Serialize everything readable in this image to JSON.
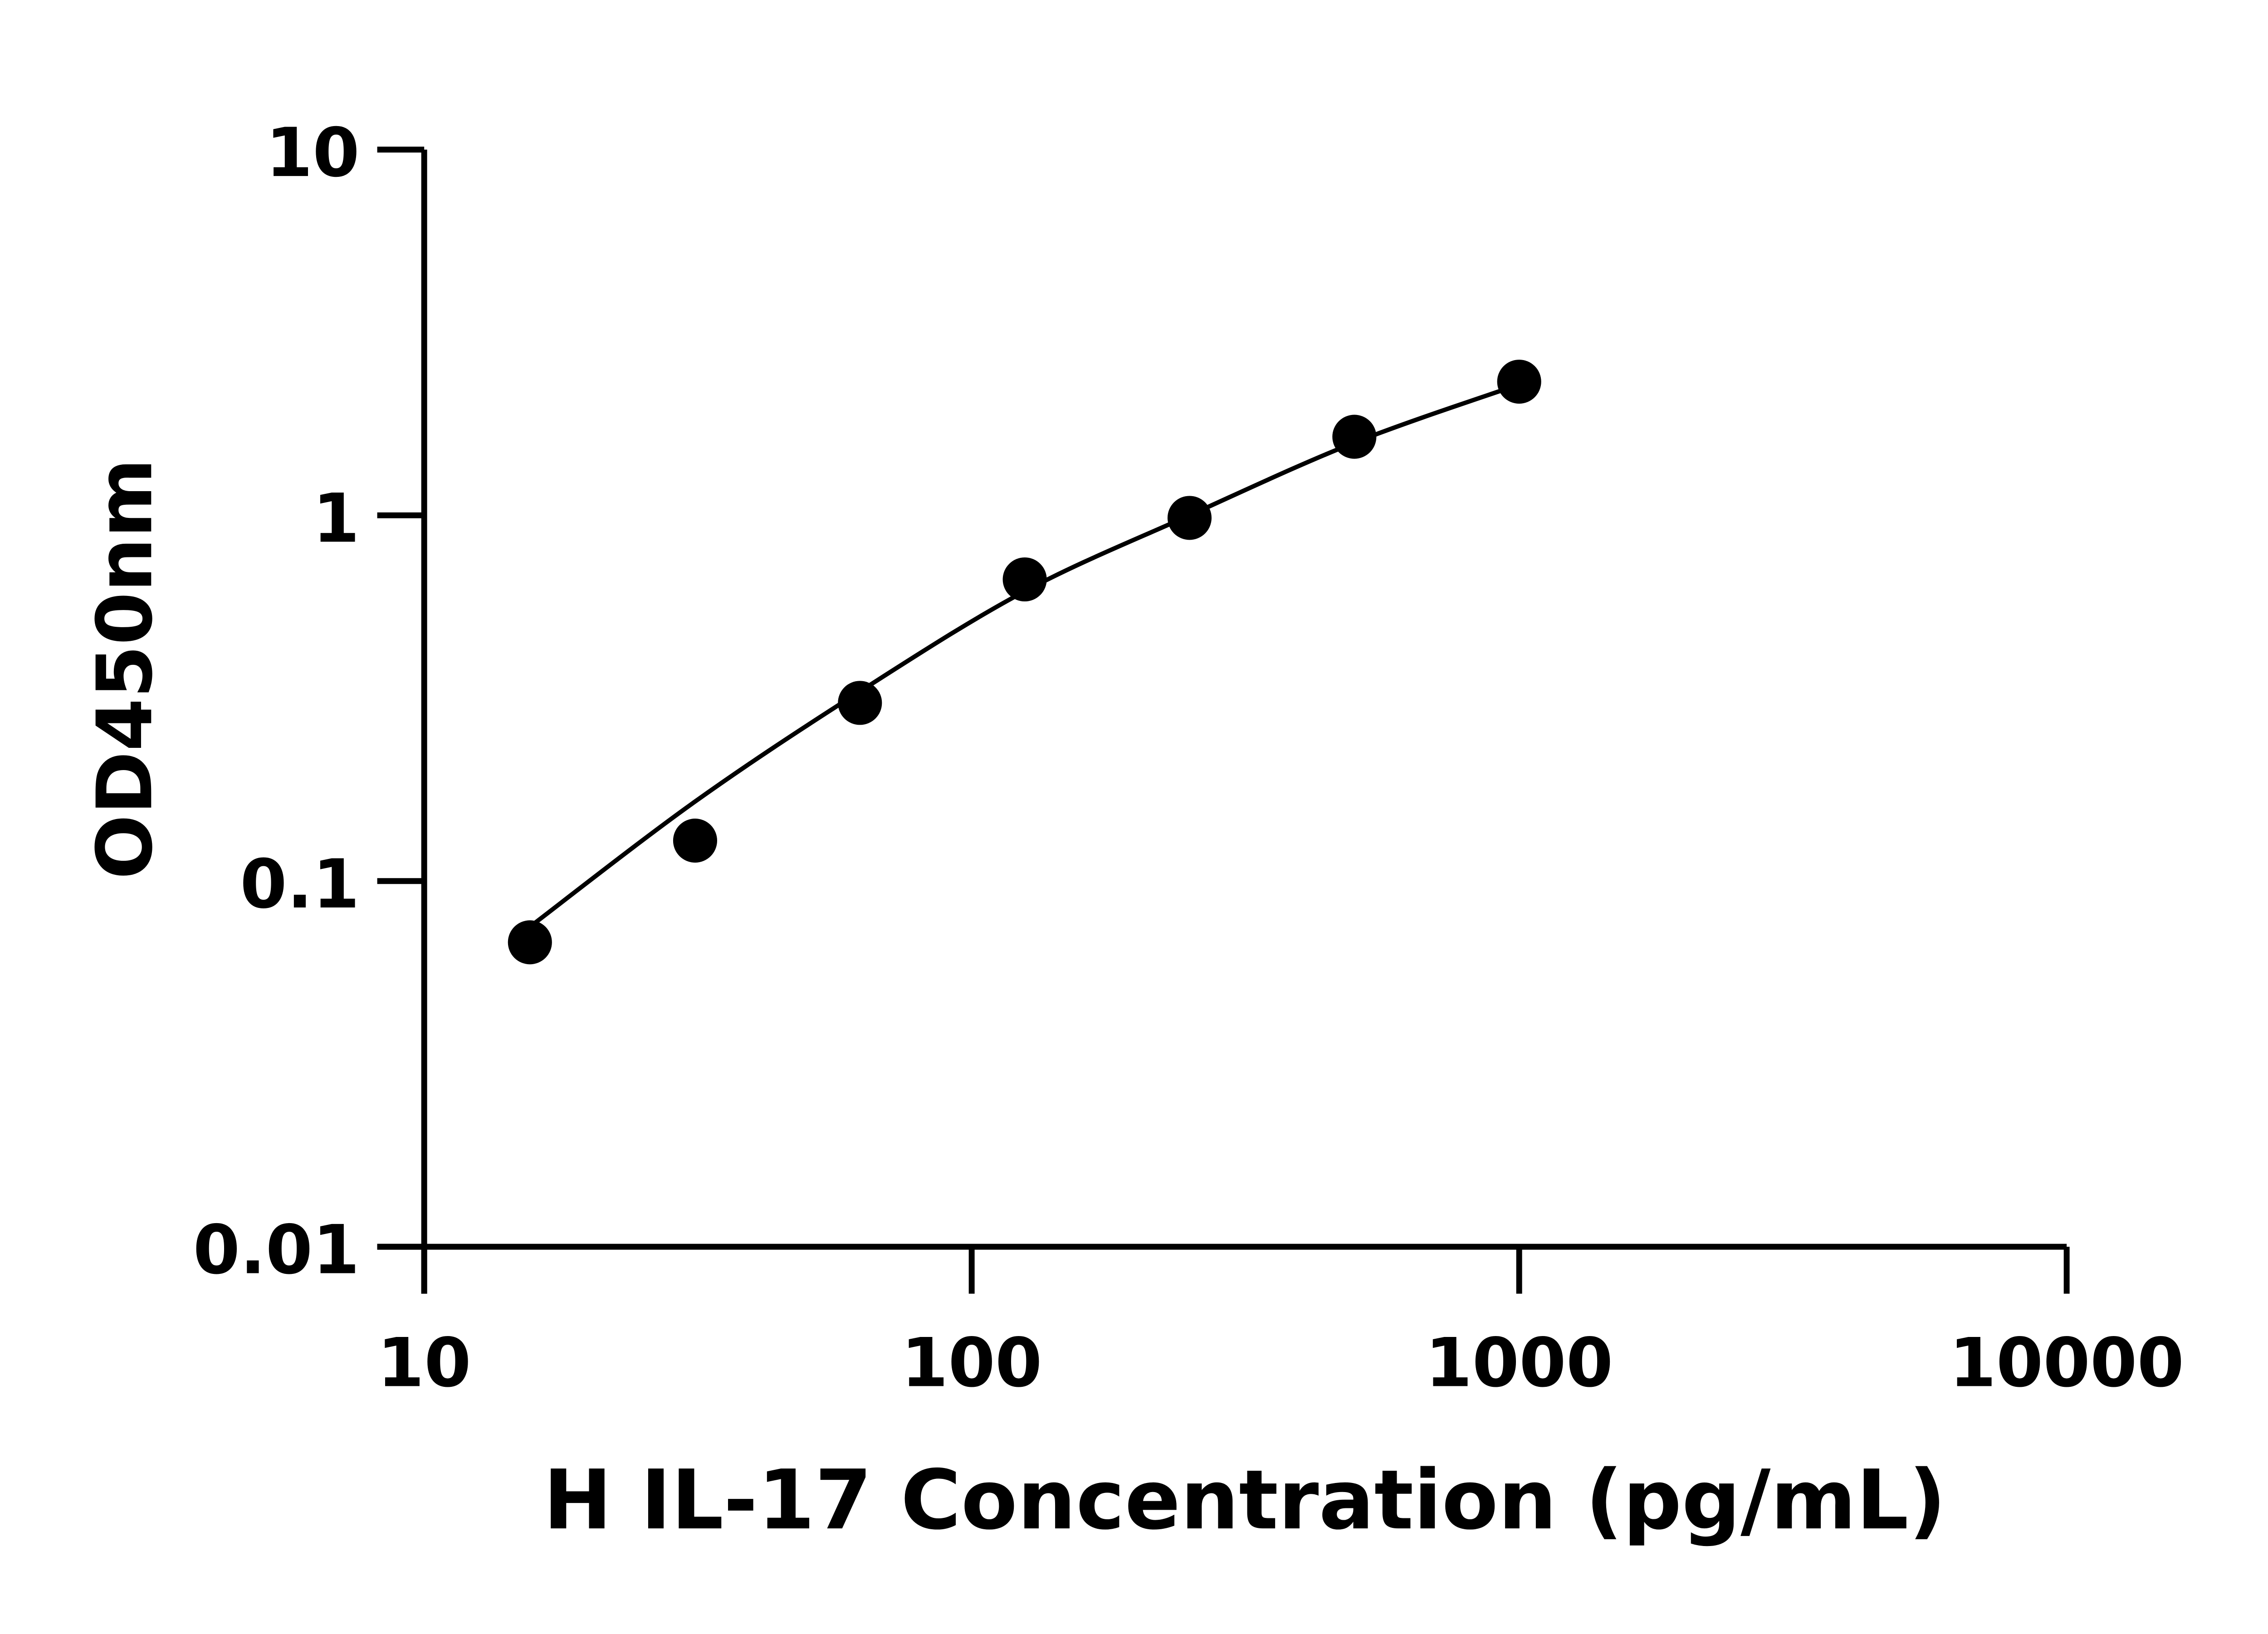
{
  "chart_data": {
    "type": "scatter",
    "title": "",
    "xlabel": "H IL-17 Concentration (pg/mL)",
    "ylabel": "OD450nm",
    "x_scale": "log",
    "y_scale": "log",
    "xlim": [
      10,
      10000
    ],
    "ylim": [
      0.01,
      10
    ],
    "x_ticks": [
      "10",
      "100",
      "1000",
      "10000"
    ],
    "y_ticks": [
      "0.01",
      "0.1",
      "1",
      "10"
    ],
    "grid": false,
    "legend": "none",
    "marker_color": "#000000",
    "series": [
      {
        "type": "scatter",
        "x": [
          15.6,
          31.25,
          62.5,
          125,
          250,
          500,
          1000
        ],
        "y": [
          0.068,
          0.129,
          0.307,
          0.668,
          0.984,
          1.64,
          2.32
        ]
      },
      {
        "type": "line",
        "x": [
          15.6,
          31.25,
          62.5,
          125,
          250,
          500,
          1000
        ],
        "y": [
          0.075,
          0.165,
          0.33,
          0.62,
          1.0,
          1.58,
          2.28
        ]
      }
    ]
  }
}
